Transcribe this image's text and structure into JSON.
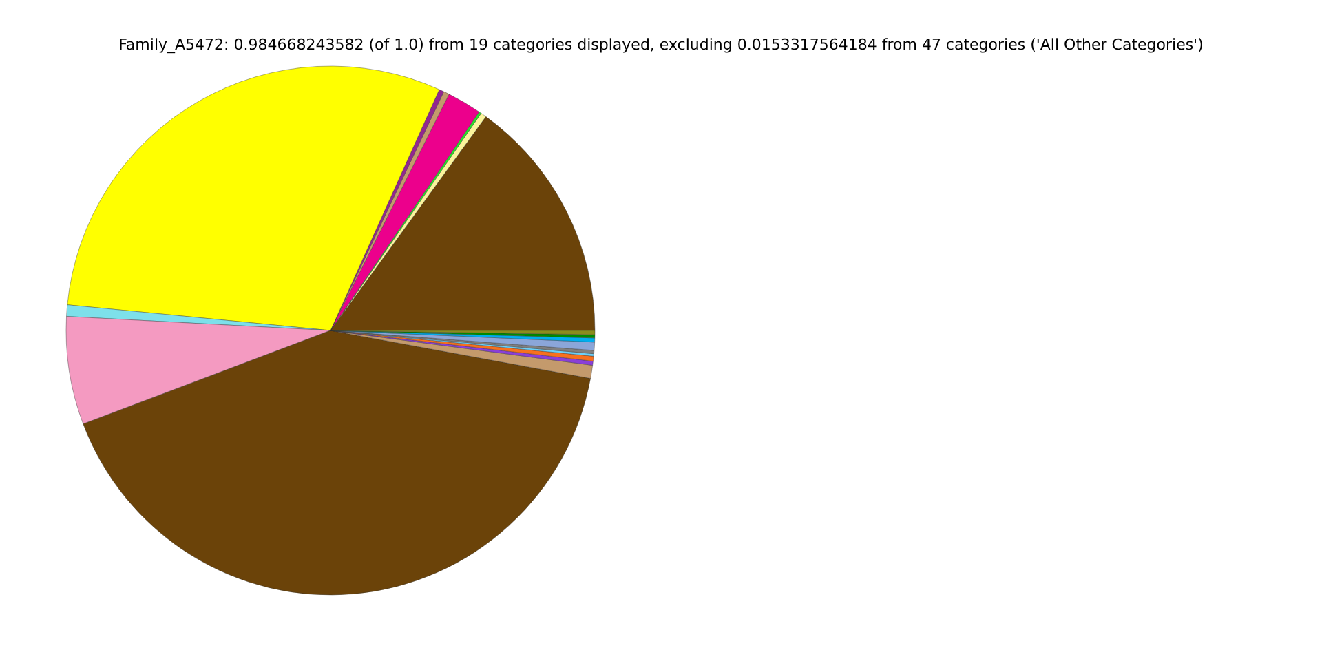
{
  "chart_data": {
    "type": "pie",
    "title": "Family_A5472: 0.984668243582 (of 1.0) from 19 categories displayed, excluding 0.0153317564184 from 47 categories ('All Other Categories')",
    "categories": [
      null,
      null,
      null,
      null,
      null,
      null,
      null,
      null,
      null,
      null,
      null,
      null,
      null,
      null,
      null,
      null,
      null,
      null,
      null
    ],
    "values": [
      15.0,
      0.35,
      0.15,
      2.1,
      0.35,
      0.3,
      30.2,
      0.7,
      6.6,
      41.35,
      0.8,
      0.25,
      0.3,
      0.15,
      0.2,
      0.5,
      0.25,
      0.2,
      0.25
    ],
    "colors": [
      "#6b4309",
      "#fbf49c",
      "#2ae02a",
      "#ec008c",
      "#c49a6c",
      "#92278f",
      "#ffff00",
      "#7de0ea",
      "#f49ac1",
      "#6b4309",
      "#c49a6c",
      "#8a3fd8",
      "#f7701e",
      "#6dcff6",
      "#808080",
      "#8ba6d9",
      "#00aeef",
      "#008c00",
      "#8b8c1c"
    ],
    "legend": false
  }
}
